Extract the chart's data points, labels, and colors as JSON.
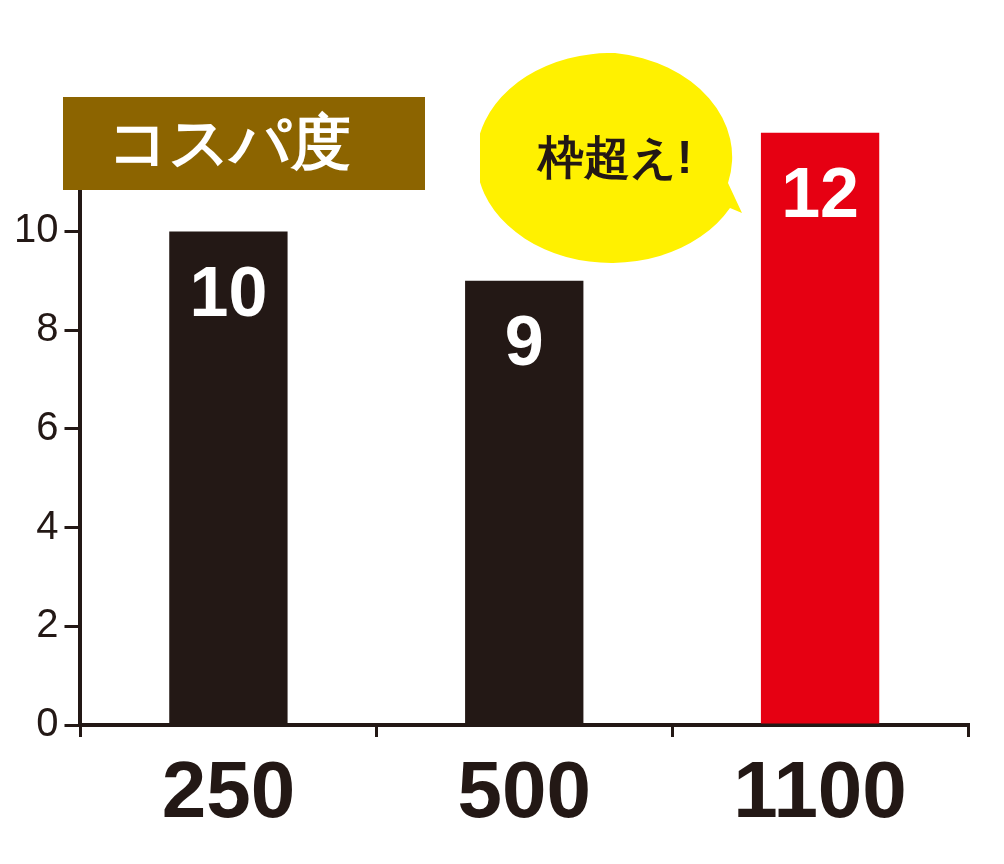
{
  "chart_data": {
    "type": "bar",
    "title": "コスパ度",
    "categories": [
      "250",
      "500",
      "1100"
    ],
    "values": [
      10,
      9,
      12
    ],
    "colors": [
      "#231815",
      "#231815",
      "#e60012"
    ],
    "ylim": [
      0,
      12.5
    ],
    "yticks": [
      0,
      2,
      4,
      6,
      8,
      10
    ],
    "data_labels": true,
    "grid": false,
    "legend": false,
    "annotations": [
      {
        "text": "枠超え!",
        "x": "1100",
        "y": 12
      }
    ]
  }
}
